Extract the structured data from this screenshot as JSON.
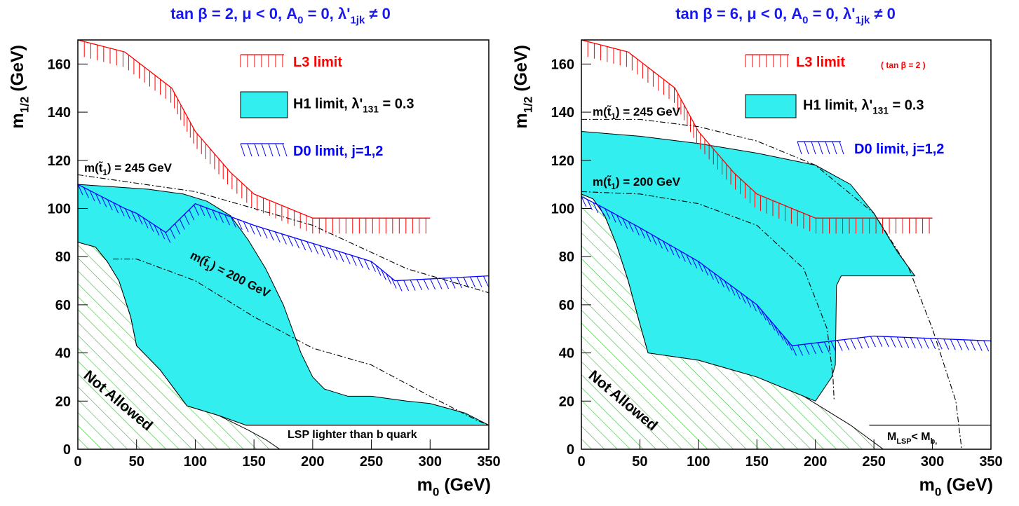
{
  "chart_data": [
    {
      "type": "exclusion",
      "title": [
        "tan β = 2, μ < 0, A",
        "0",
        " = 0, λ'",
        "1jk",
        " ≠ 0"
      ],
      "xlabel": [
        "m",
        "0",
        " (GeV)"
      ],
      "ylabel": [
        "m",
        "1/2",
        " (GeV)"
      ],
      "xlim": [
        0,
        350
      ],
      "ylim": [
        0,
        170
      ],
      "xticks": [
        0,
        50,
        100,
        150,
        200,
        250,
        300,
        350
      ],
      "yticks": [
        0,
        20,
        40,
        60,
        80,
        100,
        120,
        140,
        160
      ],
      "series": [
        {
          "name": [
            "Not Allowed"
          ],
          "style": "hatched-area",
          "color": "#33bb33",
          "x": [
            0,
            15,
            25,
            35,
            45,
            50,
            52,
            70,
            93,
            120,
            145,
            160,
            172
          ],
          "y": [
            86,
            84,
            78,
            70,
            55,
            43,
            42,
            33,
            18,
            14,
            8,
            4,
            0
          ]
        },
        {
          "name": [
            "H1 limit,  λ'",
            "131",
            " = 0.3"
          ],
          "style": "area",
          "color": "#33eeee",
          "x": [
            0,
            30,
            60,
            90,
            110,
            130,
            145,
            160,
            175,
            190,
            200,
            210,
            230,
            250,
            280,
            300,
            330,
            350,
            143,
            120,
            93,
            70,
            52,
            50,
            45,
            35,
            25,
            15,
            0
          ],
          "y": [
            110,
            109,
            108,
            106,
            103,
            97,
            87,
            75,
            60,
            40,
            30,
            25,
            22,
            22,
            20,
            19,
            15,
            10,
            10,
            14,
            18,
            33,
            42,
            43,
            55,
            70,
            78,
            84,
            86
          ]
        },
        {
          "name": [
            "L3 limit"
          ],
          "style": "hatched-line",
          "color": "#ff0000",
          "x": [
            0,
            40,
            80,
            100,
            130,
            150,
            200,
            300
          ],
          "y": [
            170,
            165,
            150,
            132,
            115,
            106,
            96,
            96
          ]
        },
        {
          "name": [
            "D0 limit, j=1,2"
          ],
          "style": "hatched-line-slant",
          "color": "#0000ff",
          "x": [
            0,
            20,
            40,
            50,
            75,
            100,
            150,
            250,
            270,
            350
          ],
          "y": [
            110,
            105,
            100,
            98,
            90,
            102,
            93,
            78,
            70,
            72
          ]
        },
        {
          "name": [
            "m(t̃",
            "1",
            ") = 245 GeV"
          ],
          "style": "dash-dot",
          "color": "#000000",
          "x": [
            0,
            100,
            200,
            280,
            350
          ],
          "y": [
            114,
            107,
            93,
            75,
            65
          ]
        },
        {
          "name": [
            "m(t̃",
            "1",
            ") = 200 GeV"
          ],
          "style": "dash-dot",
          "color": "#000000",
          "x": [
            30,
            50,
            100,
            150,
            200,
            250,
            300,
            340,
            350
          ],
          "y": [
            79,
            79,
            70,
            55,
            42,
            35,
            22,
            12,
            10
          ]
        },
        {
          "name": [
            "LSP lighter than b quark"
          ],
          "style": "line",
          "color": "#000000",
          "x": [
            143,
            350
          ],
          "y": [
            10,
            10
          ]
        }
      ]
    },
    {
      "type": "exclusion",
      "title": [
        "tan β = 6, μ < 0, A",
        "0",
        " = 0, λ'",
        "1jk",
        " ≠ 0"
      ],
      "xlabel": [
        "m",
        "0",
        " (GeV)"
      ],
      "ylabel": [
        "m",
        "1/2",
        " (GeV)"
      ],
      "xlim": [
        0,
        350
      ],
      "ylim": [
        0,
        170
      ],
      "xticks": [
        0,
        50,
        100,
        150,
        200,
        250,
        300,
        350
      ],
      "yticks": [
        0,
        20,
        40,
        60,
        80,
        100,
        120,
        140,
        160
      ],
      "series": [
        {
          "name": [
            "Not Allowed"
          ],
          "style": "hatched-area",
          "color": "#33bb33",
          "x": [
            0,
            10,
            20,
            30,
            40,
            50,
            57,
            100,
            150,
            190,
            230,
            258
          ],
          "y": [
            106,
            104,
            97,
            85,
            70,
            52,
            40,
            37,
            30,
            22,
            10,
            0
          ]
        },
        {
          "name": [
            "H1 limit,  λ'",
            "131",
            " = 0.3"
          ],
          "style": "area",
          "color": "#33eeee",
          "x": [
            0,
            50,
            100,
            150,
            200,
            230,
            250,
            270,
            285,
            222,
            218,
            217,
            214,
            200,
            150,
            100,
            57,
            50,
            40,
            30,
            20,
            10,
            0
          ],
          "y": [
            132,
            130,
            127,
            123,
            118,
            110,
            98,
            82,
            72,
            72,
            68,
            35,
            30,
            20,
            30,
            37,
            40,
            52,
            70,
            85,
            97,
            104,
            106
          ]
        },
        {
          "name": [
            "L3 limit"
          ],
          "note": "( tan β = 2 )",
          "style": "hatched-line",
          "color": "#ff0000",
          "x": [
            0,
            40,
            80,
            100,
            130,
            150,
            200,
            300
          ],
          "y": [
            170,
            165,
            150,
            132,
            115,
            106,
            96,
            96
          ]
        },
        {
          "name": [
            "D0 limit, j=1,2"
          ],
          "style": "hatched-line-slant",
          "color": "#0000ff",
          "x": [
            0,
            20,
            50,
            100,
            150,
            180,
            250,
            350
          ],
          "y": [
            105,
            100,
            92,
            78,
            60,
            43,
            47,
            45
          ]
        },
        {
          "name": [
            "m(t̃",
            "1",
            ") = 245 GeV"
          ],
          "style": "dash-dot",
          "color": "#000000",
          "x": [
            0,
            50,
            100,
            150,
            200,
            250,
            280,
            300,
            320,
            325
          ],
          "y": [
            137,
            137,
            134,
            128,
            118,
            98,
            75,
            50,
            20,
            0
          ]
        },
        {
          "name": [
            "m(t̃",
            "1",
            ") = 200 GeV"
          ],
          "style": "dash-dot",
          "color": "#000000",
          "x": [
            0,
            50,
            100,
            150,
            190,
            210,
            215,
            216
          ],
          "y": [
            107,
            106,
            102,
            93,
            75,
            50,
            30,
            20
          ]
        },
        {
          "name": [
            "M",
            "LSP",
            "<  M",
            "b,"
          ],
          "style": "line",
          "color": "#000000",
          "x": [
            246,
            350
          ],
          "y": [
            10,
            10
          ]
        }
      ]
    }
  ]
}
